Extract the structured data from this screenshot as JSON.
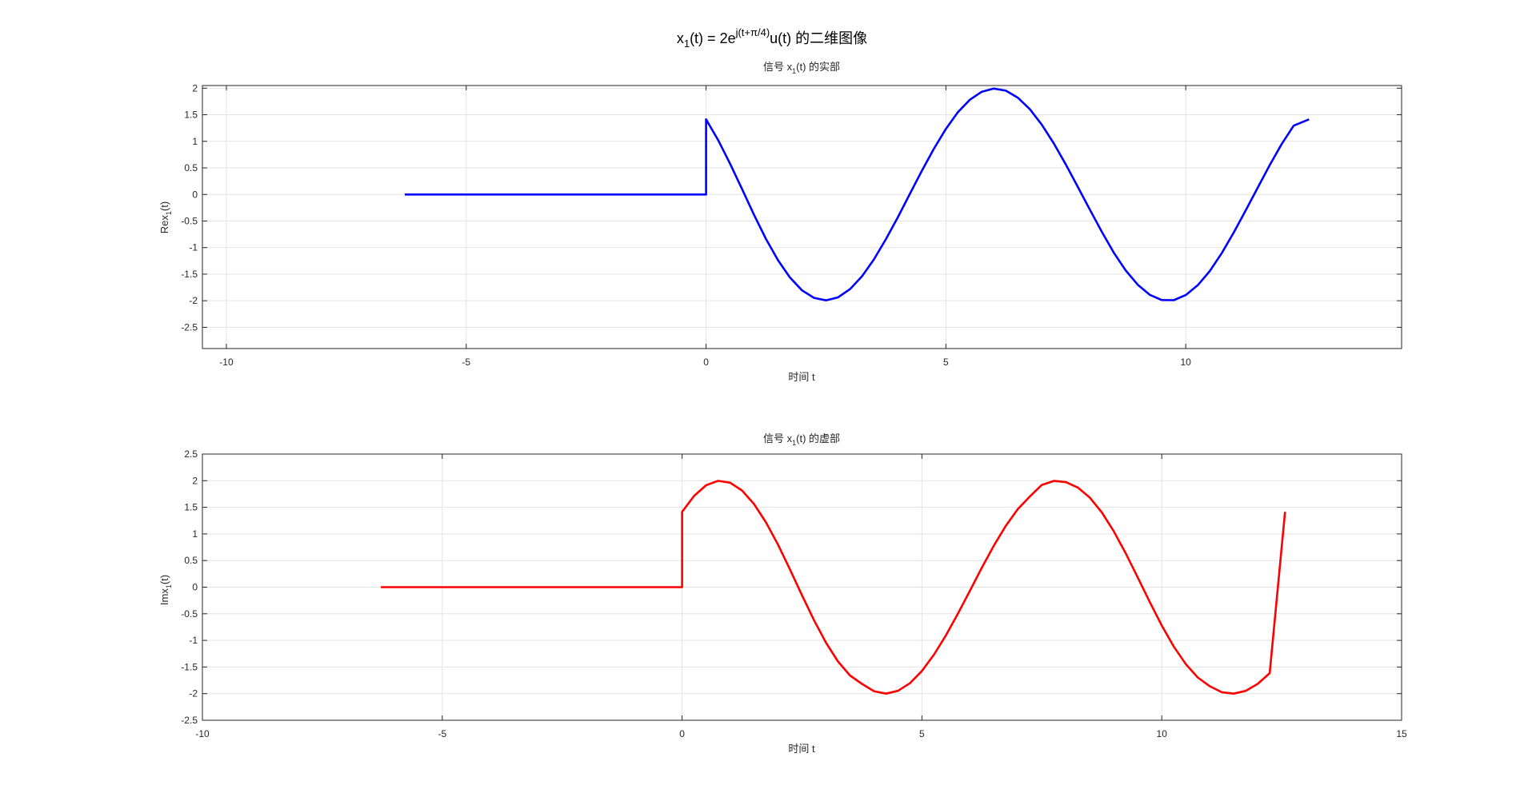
{
  "figure": {
    "suptitle": {
      "base": "x",
      "sub": "1",
      "mid": "(t) = 2e",
      "sup": "j(t+π/4)",
      "tail": "u(t) 的二维图像"
    }
  },
  "chart_data": [
    {
      "type": "line",
      "title": {
        "pre": "信号 x",
        "sub": "1",
        "post": "(t) 的实部"
      },
      "xlabel": "时间 t",
      "ylabel": {
        "pre": "Rex",
        "sub": "1",
        "post": "(t)"
      },
      "xlim": [
        -10.5,
        14.5
      ],
      "ylim": [
        -2.9,
        2.05
      ],
      "xticks": [
        -10,
        -5,
        0,
        5,
        10
      ],
      "xtick_labels": [
        "-10",
        "-5",
        "0",
        "5",
        "10"
      ],
      "yticks": [
        -2.5,
        -2,
        -1.5,
        -1,
        -0.5,
        0,
        0.5,
        1,
        1.5,
        2
      ],
      "ytick_labels": [
        "-2.5",
        "-2",
        "-1.5",
        "-1",
        "-0.5",
        "0",
        "0.5",
        "1",
        "1.5",
        "2"
      ],
      "grid": true,
      "series": [
        {
          "color": "#0000ff",
          "x": [
            -6.28,
            -5.5,
            -5,
            -4.5,
            -4,
            -3.5,
            -3,
            -2.5,
            -2,
            -1.5,
            -1,
            -0.5,
            0,
            0,
            0.25,
            0.5,
            0.75,
            1,
            1.25,
            1.5,
            1.75,
            2,
            2.25,
            2.5,
            2.75,
            3,
            3.25,
            3.5,
            3.75,
            4,
            4.25,
            4.5,
            4.75,
            5,
            5.25,
            5.5,
            5.75,
            6,
            6.25,
            6.5,
            6.75,
            7,
            7.25,
            7.5,
            7.75,
            8,
            8.25,
            8.5,
            8.75,
            9,
            9.25,
            9.5,
            9.75,
            10,
            10.25,
            10.5,
            10.75,
            11,
            11.25,
            11.5,
            11.75,
            12,
            12.25,
            12.57
          ],
          "y": [
            0,
            0,
            0,
            0,
            0,
            0,
            0,
            0,
            0,
            0,
            0,
            0,
            0,
            1.414,
            1.025,
            0.579,
            0.1,
            -0.383,
            -0.839,
            -1.238,
            -1.564,
            -1.804,
            -1.946,
            -1.993,
            -1.937,
            -1.782,
            -1.54,
            -1.222,
            -0.841,
            -0.427,
            0.013,
            0.448,
            0.862,
            1.234,
            1.549,
            1.784,
            1.934,
            1.993,
            1.953,
            1.821,
            1.605,
            1.312,
            0.959,
            0.564,
            0.14,
            -0.285,
            -0.704,
            -1.094,
            -1.431,
            -1.699,
            -1.889,
            -1.987,
            -1.989,
            -1.893,
            -1.708,
            -1.442,
            -1.107,
            -0.718,
            -0.3,
            0.125,
            0.551,
            0.948,
            1.295,
            1.414
          ]
        }
      ]
    },
    {
      "type": "line",
      "title": {
        "pre": "信号 x",
        "sub": "1",
        "post": "(t) 的虚部"
      },
      "xlabel": "时间 t",
      "ylabel": {
        "pre": "Imx",
        "sub": "1",
        "post": "(t)"
      },
      "xlim": [
        -10,
        15
      ],
      "ylim": [
        -2.5,
        2.5
      ],
      "xticks": [
        -10,
        -5,
        0,
        5,
        10,
        15
      ],
      "xtick_labels": [
        "-10",
        "-5",
        "0",
        "5",
        "10",
        "15"
      ],
      "yticks": [
        -2.5,
        -2,
        -1.5,
        -1,
        -0.5,
        0,
        0.5,
        1,
        1.5,
        2,
        2.5
      ],
      "ytick_labels": [
        "-2.5",
        "-2",
        "-1.5",
        "-1",
        "-0.5",
        "0",
        "0.5",
        "1",
        "1.5",
        "2",
        "2.5"
      ],
      "grid": true,
      "series": [
        {
          "color": "#ff0000",
          "x": [
            -6.28,
            -5.5,
            -5,
            -4.5,
            -4,
            -3.5,
            -3,
            -2.5,
            -2,
            -1.5,
            -1,
            -0.5,
            0,
            0,
            0.25,
            0.5,
            0.75,
            1,
            1.25,
            1.5,
            1.75,
            2,
            2.25,
            2.5,
            2.75,
            3,
            3.25,
            3.5,
            3.75,
            4,
            4.25,
            4.5,
            4.75,
            5,
            5.25,
            5.5,
            5.75,
            6,
            6.25,
            6.5,
            6.75,
            7,
            7.25,
            7.5,
            7.75,
            8,
            8.25,
            8.5,
            8.75,
            9,
            9.25,
            9.5,
            9.75,
            10,
            10.25,
            10.5,
            10.75,
            11,
            11.25,
            11.5,
            11.75,
            12,
            12.25,
            12.57
          ],
          "y": [
            0,
            0,
            0,
            0,
            0,
            0,
            0,
            0,
            0,
            0,
            0,
            0,
            0,
            1.414,
            1.713,
            1.915,
            1.997,
            1.962,
            1.816,
            1.561,
            1.216,
            0.799,
            0.332,
            -0.153,
            -0.62,
            -1.043,
            -1.396,
            -1.659,
            -1.817,
            -1.953,
            -2.0,
            -1.947,
            -1.805,
            -1.574,
            -1.269,
            -0.905,
            -0.497,
            -0.067,
            0.367,
            0.78,
            1.153,
            1.467,
            1.703,
            1.92,
            1.995,
            1.973,
            1.871,
            1.682,
            1.404,
            1.049,
            0.633,
            0.182,
            -0.279,
            -0.721,
            -1.115,
            -1.444,
            -1.696,
            -1.86,
            -1.973,
            -2.0,
            -1.948,
            -1.817,
            -1.615,
            1.414
          ]
        }
      ]
    }
  ]
}
